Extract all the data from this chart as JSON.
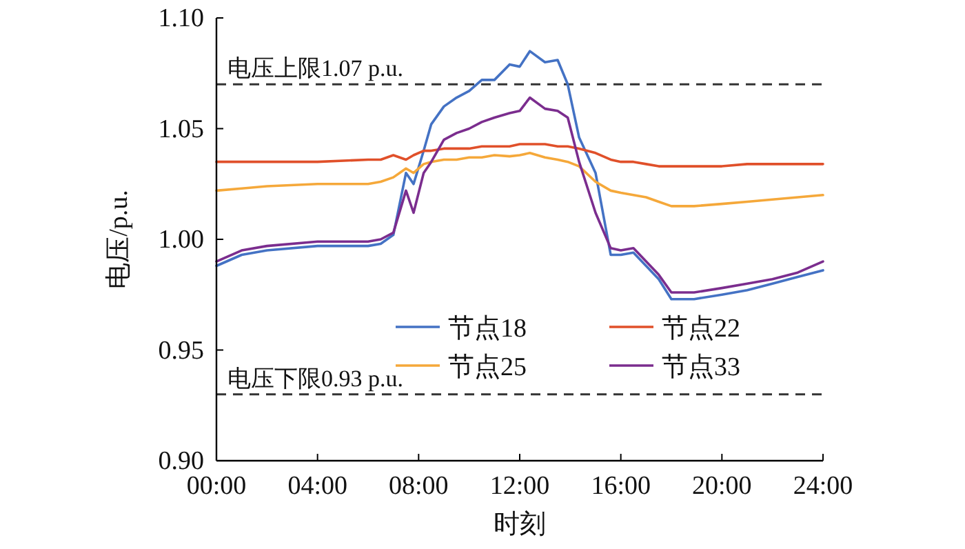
{
  "chart_data": {
    "type": "line",
    "xlabel": "时刻",
    "ylabel": "电压/p.u.",
    "xlim": [
      0,
      24
    ],
    "ylim": [
      0.9,
      1.1
    ],
    "xticks": [
      {
        "value": 0,
        "label": "00:00"
      },
      {
        "value": 4,
        "label": "04:00"
      },
      {
        "value": 8,
        "label": "08:00"
      },
      {
        "value": 12,
        "label": "12:00"
      },
      {
        "value": 16,
        "label": "16:00"
      },
      {
        "value": 20,
        "label": "20:00"
      },
      {
        "value": 24,
        "label": "24:00"
      }
    ],
    "yticks": [
      {
        "value": 0.9,
        "label": "0.90"
      },
      {
        "value": 0.95,
        "label": "0.95"
      },
      {
        "value": 1.0,
        "label": "1.00"
      },
      {
        "value": 1.05,
        "label": "1.05"
      },
      {
        "value": 1.1,
        "label": "1.10"
      }
    ],
    "x": [
      0,
      1,
      2,
      4,
      6,
      6.5,
      7,
      7.5,
      7.8,
      8.2,
      8.5,
      9,
      9.5,
      10,
      10.5,
      11,
      11.6,
      12,
      12.4,
      13,
      13.5,
      13.9,
      14.35,
      15,
      15.6,
      16,
      16.5,
      17,
      17.5,
      18,
      18.9,
      20,
      21,
      22,
      23,
      24
    ],
    "series": [
      {
        "name": "节点18",
        "color": "#4472c4",
        "values": [
          0.988,
          0.993,
          0.995,
          0.997,
          0.997,
          0.998,
          1.002,
          1.03,
          1.025,
          1.04,
          1.052,
          1.06,
          1.064,
          1.067,
          1.072,
          1.072,
          1.079,
          1.078,
          1.085,
          1.08,
          1.081,
          1.07,
          1.046,
          1.03,
          0.993,
          0.993,
          0.994,
          0.988,
          0.982,
          0.973,
          0.973,
          0.975,
          0.977,
          0.98,
          0.983,
          0.986
        ]
      },
      {
        "name": "节点22",
        "color": "#e0502a",
        "values": [
          1.035,
          1.035,
          1.035,
          1.035,
          1.036,
          1.036,
          1.038,
          1.036,
          1.038,
          1.04,
          1.04,
          1.041,
          1.041,
          1.041,
          1.042,
          1.042,
          1.042,
          1.043,
          1.043,
          1.043,
          1.042,
          1.042,
          1.041,
          1.039,
          1.036,
          1.035,
          1.035,
          1.034,
          1.033,
          1.033,
          1.033,
          1.033,
          1.034,
          1.034,
          1.034,
          1.034
        ]
      },
      {
        "name": "节点25",
        "color": "#f5a83a",
        "values": [
          1.022,
          1.023,
          1.024,
          1.025,
          1.025,
          1.026,
          1.028,
          1.032,
          1.03,
          1.034,
          1.035,
          1.036,
          1.036,
          1.037,
          1.037,
          1.038,
          1.0375,
          1.038,
          1.039,
          1.037,
          1.036,
          1.035,
          1.033,
          1.026,
          1.022,
          1.021,
          1.02,
          1.019,
          1.017,
          1.015,
          1.015,
          1.016,
          1.017,
          1.018,
          1.019,
          1.02
        ]
      },
      {
        "name": "节点33",
        "color": "#7b2d8e",
        "values": [
          0.99,
          0.995,
          0.997,
          0.999,
          0.999,
          1.0,
          1.003,
          1.022,
          1.012,
          1.03,
          1.035,
          1.045,
          1.048,
          1.05,
          1.053,
          1.055,
          1.057,
          1.058,
          1.064,
          1.059,
          1.058,
          1.055,
          1.035,
          1.012,
          0.996,
          0.995,
          0.996,
          0.99,
          0.984,
          0.976,
          0.976,
          0.978,
          0.98,
          0.982,
          0.985,
          0.99
        ]
      }
    ],
    "ref_lines": [
      {
        "axis": "y",
        "value": 1.07,
        "label": "电压上限1.07 p.u.",
        "color": "#333333",
        "line_style": "dashed"
      },
      {
        "axis": "y",
        "value": 0.93,
        "label": "电压下限0.93 p.u.",
        "color": "#333333",
        "line_style": "dashed"
      }
    ],
    "legend": "bottom right",
    "grid": false
  }
}
